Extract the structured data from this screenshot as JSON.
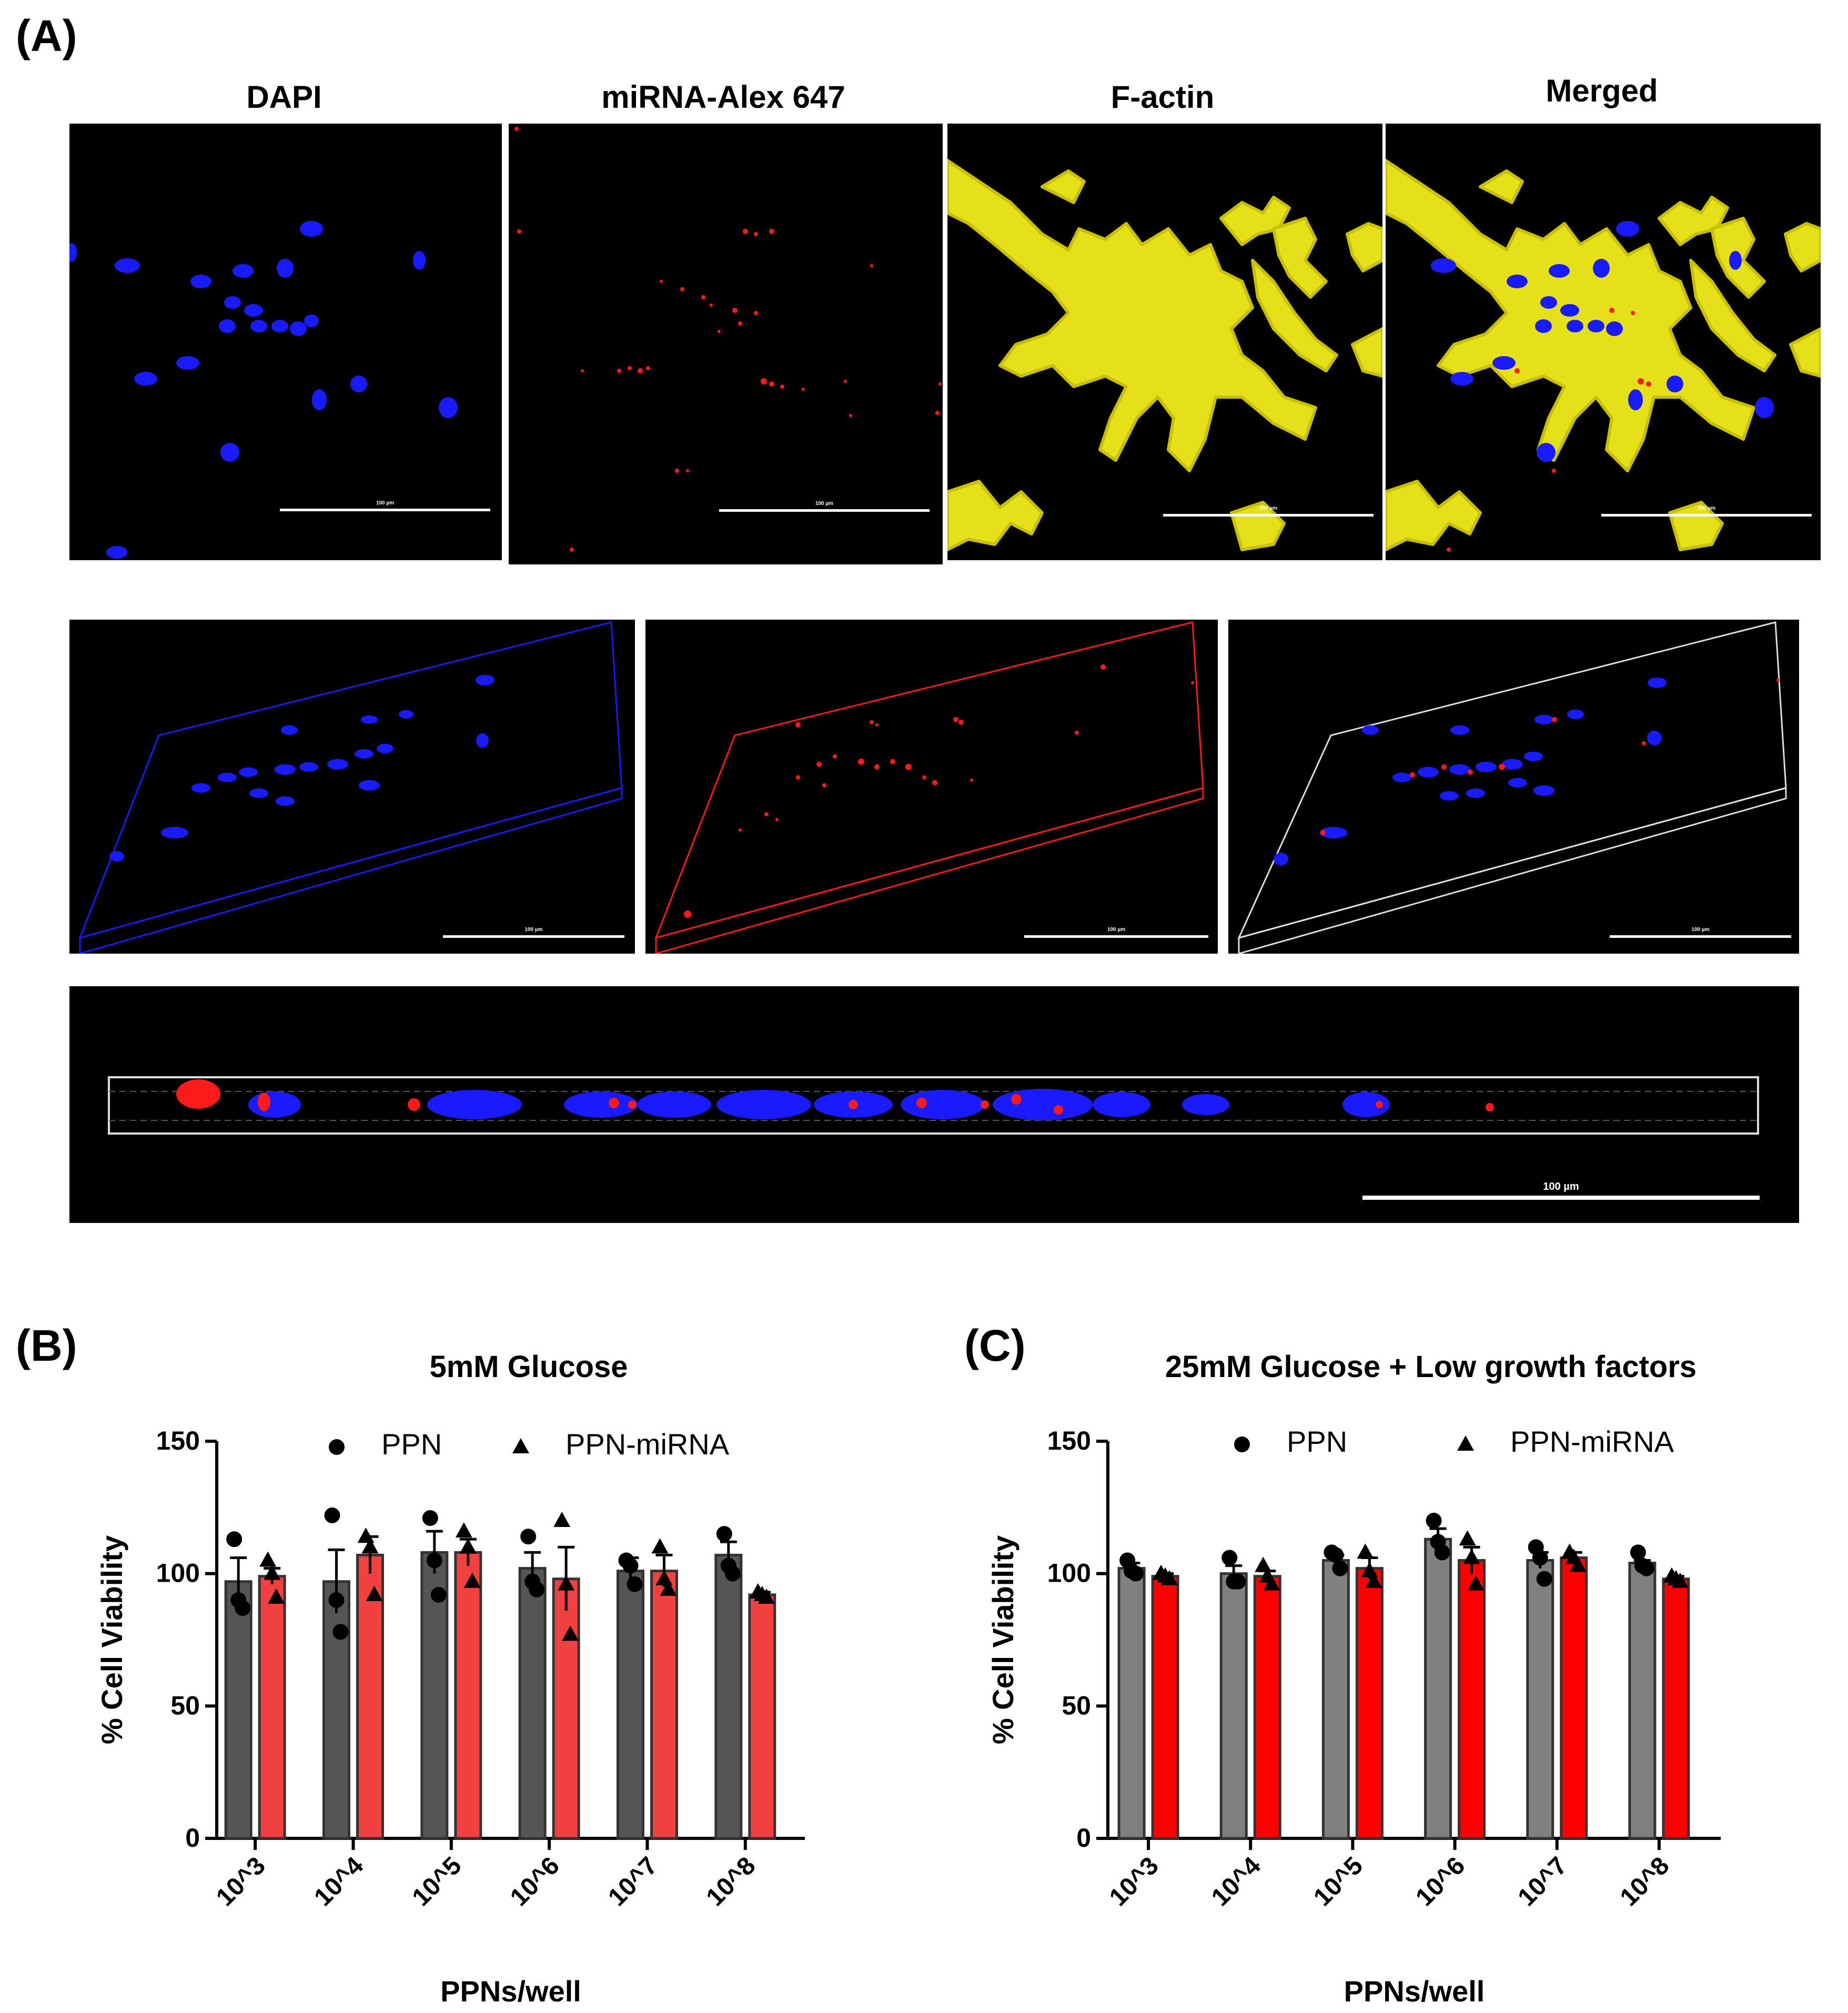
{
  "panel_labels": {
    "a": "(A)",
    "b": "(B)",
    "c": "(C)"
  },
  "channel_titles": [
    "DAPI",
    "miRNA-Alex 647",
    "F-actin",
    "Merged"
  ],
  "scale_bar_label": "100 µm",
  "colors": {
    "dapi": "#1a1aff",
    "mirna": "#ff1a1a",
    "factin": "#e6e01a",
    "ppn_bar": "#555555",
    "ppn_mirna_bar_b": "#f04040",
    "ppn_bar_c": "#808080",
    "ppn_mirna_bar_c": "#ff0000"
  },
  "chart_data": [
    {
      "type": "bar",
      "panel": "(B)",
      "title": "5mM Glucose",
      "xlabel": "PPNs/well",
      "ylabel": "% Cell Viability",
      "categories": [
        "10^3",
        "10^4",
        "10^5",
        "10^6",
        "10^7",
        "10^8"
      ],
      "ylim": [
        0,
        150
      ],
      "yticks": [
        0,
        50,
        100,
        150
      ],
      "legend_position": "top",
      "series": [
        {
          "name": "PPN",
          "marker": "circle",
          "values": [
            97,
            97,
            108,
            102,
            101,
            107
          ],
          "errors": [
            9,
            12,
            8,
            6,
            5,
            5
          ],
          "points": [
            [
              113,
              90,
              87
            ],
            [
              122,
              90,
              78
            ],
            [
              121,
              105,
              92
            ],
            [
              114,
              97,
              94
            ],
            [
              105,
              103,
              96
            ],
            [
              115,
              103,
              100
            ]
          ]
        },
        {
          "name": "PPN-miRNA",
          "marker": "triangle",
          "values": [
            99,
            107,
            108,
            98,
            101,
            92
          ],
          "errors": [
            3,
            7,
            5,
            12,
            6,
            1
          ],
          "points": [
            [
              105,
              100,
              91
            ],
            [
              114,
              110,
              92
            ],
            [
              116,
              110,
              97
            ],
            [
              120,
              96,
              77
            ],
            [
              110,
              98,
              94
            ],
            [
              93,
              92,
              91
            ]
          ]
        }
      ]
    },
    {
      "type": "bar",
      "panel": "(C)",
      "title": "25mM Glucose + Low growth factors",
      "xlabel": "PPNs/well",
      "ylabel": "% Cell Viability",
      "categories": [
        "10^3",
        "10^4",
        "10^5",
        "10^6",
        "10^7",
        "10^8"
      ],
      "ylim": [
        0,
        150
      ],
      "yticks": [
        0,
        50,
        100,
        150
      ],
      "legend_position": "top",
      "series": [
        {
          "name": "PPN",
          "marker": "circle",
          "values": [
            102,
            100,
            105,
            113,
            105,
            104
          ],
          "errors": [
            2,
            3,
            2,
            4,
            3,
            1
          ],
          "points": [
            [
              105,
              101,
              100
            ],
            [
              106,
              97,
              97
            ],
            [
              108,
              107,
              102
            ],
            [
              120,
              112,
              108
            ],
            [
              110,
              106,
              98
            ],
            [
              108,
              103,
              102
            ]
          ]
        },
        {
          "name": "PPN-miRNA",
          "marker": "triangle",
          "values": [
            99,
            99,
            102,
            105,
            106,
            98
          ],
          "errors": [
            1,
            2,
            4,
            5,
            2,
            1
          ],
          "points": [
            [
              100,
              99,
              98
            ],
            [
              103,
              99,
              96
            ],
            [
              108,
              101,
              97
            ],
            [
              113,
              106,
              96
            ],
            [
              108,
              106,
              103
            ],
            [
              99,
              98,
              97
            ]
          ]
        }
      ]
    }
  ]
}
